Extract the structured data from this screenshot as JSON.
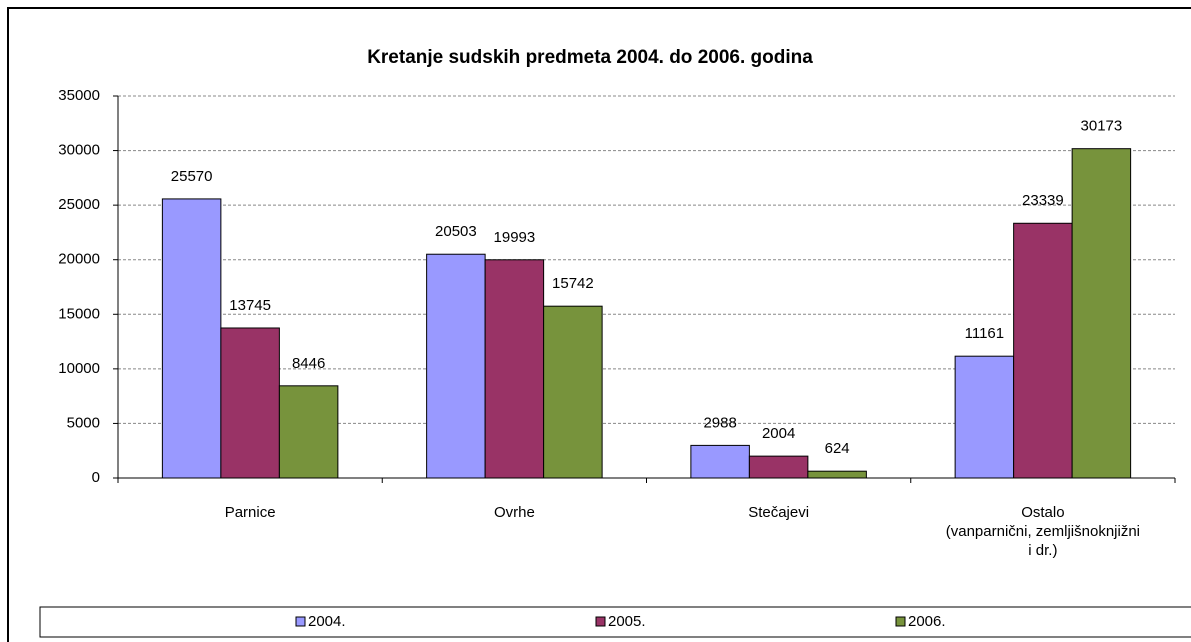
{
  "chart_data": {
    "type": "bar",
    "title": "Kretanje sudskih predmeta 2004. do 2006. godina",
    "categories": [
      "Parnice",
      "Ovrhe",
      "Stečajevi",
      "Ostalo\n(vanparnični, zemljišnoknjižni\ni dr.)"
    ],
    "series": [
      {
        "name": "2004.",
        "color": "#9999ff",
        "values": [
          25570,
          20503,
          2988,
          11161
        ]
      },
      {
        "name": "2005.",
        "color": "#993366",
        "values": [
          13745,
          19993,
          2004,
          23339
        ]
      },
      {
        "name": "2006.",
        "color": "#77933c",
        "values": [
          8446,
          15742,
          624,
          30173
        ]
      }
    ],
    "ylim": [
      0,
      35000
    ],
    "yticks": [
      0,
      5000,
      10000,
      15000,
      20000,
      25000,
      30000,
      35000
    ],
    "grid": true,
    "legend": "bottom"
  }
}
